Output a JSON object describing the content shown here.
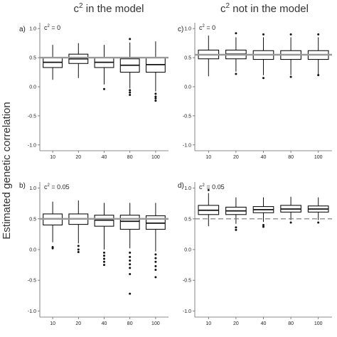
{
  "figure": {
    "column_titles": [
      {
        "base": "c",
        "sup": "2",
        "rest": " in the model"
      },
      {
        "base": "c",
        "sup": "2",
        "rest": " not in the model"
      }
    ],
    "y_axis_label": "Estimated genetic correlation"
  },
  "chart_data": [
    {
      "type": "box",
      "panel": "a)",
      "c2_label": {
        "base": "c",
        "sup": "2",
        "rest": " = 0"
      },
      "categories": [
        "10",
        "20",
        "40",
        "80",
        "100"
      ],
      "ylim": [
        -1.1,
        1.1
      ],
      "yticks": [
        "1.0",
        "0.5",
        "0.0",
        "-0.5",
        "-1.0"
      ],
      "yticks_values": [
        1.0,
        0.5,
        0.0,
        -0.5,
        -1.0
      ],
      "reference_line": {
        "value": 0.5,
        "style": "solid-gray"
      },
      "boxes": [
        {
          "min": 0.12,
          "q1": 0.33,
          "median": 0.42,
          "q3": 0.5,
          "max": 0.72,
          "outliers": []
        },
        {
          "min": 0.15,
          "q1": 0.4,
          "median": 0.48,
          "q3": 0.56,
          "max": 0.75,
          "outliers": []
        },
        {
          "min": 0.04,
          "q1": 0.33,
          "median": 0.42,
          "q3": 0.5,
          "max": 0.72,
          "outliers": [
            -0.04
          ]
        },
        {
          "min": -0.03,
          "q1": 0.25,
          "median": 0.37,
          "q3": 0.48,
          "max": 0.76,
          "outliers": [
            -0.06,
            -0.1,
            -0.14,
            0.82
          ]
        },
        {
          "min": -0.08,
          "q1": 0.25,
          "median": 0.38,
          "q3": 0.5,
          "max": 0.78,
          "outliers": [
            -0.12,
            -0.17,
            -0.2,
            -0.24
          ]
        }
      ]
    },
    {
      "type": "box",
      "panel": "c)",
      "c2_label": {
        "base": "c",
        "sup": "2",
        "rest": " = 0"
      },
      "categories": [
        "10",
        "20",
        "40",
        "80",
        "100"
      ],
      "ylim": [
        -1.1,
        1.1
      ],
      "yticks": [
        "1.0",
        "0.5",
        "0.0",
        "-0.5",
        "-1.0"
      ],
      "yticks_values": [
        1.0,
        0.5,
        0.0,
        -0.5,
        -1.0
      ],
      "reference_line": {
        "value": 0.55,
        "style": "solid-gray"
      },
      "boxes": [
        {
          "min": 0.18,
          "q1": 0.48,
          "median": 0.55,
          "q3": 0.63,
          "max": 0.88,
          "outliers": []
        },
        {
          "min": 0.26,
          "q1": 0.48,
          "median": 0.56,
          "q3": 0.63,
          "max": 0.85,
          "outliers": [
            0.22,
            0.92
          ]
        },
        {
          "min": 0.2,
          "q1": 0.47,
          "median": 0.55,
          "q3": 0.62,
          "max": 0.85,
          "outliers": [
            0.15,
            0.9
          ]
        },
        {
          "min": 0.2,
          "q1": 0.47,
          "median": 0.55,
          "q3": 0.62,
          "max": 0.85,
          "outliers": [
            0.17,
            0.9
          ]
        },
        {
          "min": 0.2,
          "q1": 0.47,
          "median": 0.55,
          "q3": 0.62,
          "max": 0.85,
          "outliers": [
            0.2,
            0.9
          ]
        }
      ]
    },
    {
      "type": "box",
      "panel": "b)",
      "c2_label": {
        "base": "c",
        "sup": "2",
        "rest": " = 0.05"
      },
      "categories": [
        "10",
        "20",
        "40",
        "80",
        "100"
      ],
      "ylim": [
        -1.1,
        1.1
      ],
      "yticks": [
        "1.0",
        "0.5",
        "0.0",
        "-0.5",
        "-1.0"
      ],
      "yticks_values": [
        1.0,
        0.5,
        0.0,
        -0.5,
        -1.0
      ],
      "reference_line": {
        "value": 0.5,
        "style": "solid-gray"
      },
      "boxes": [
        {
          "min": 0.12,
          "q1": 0.4,
          "median": 0.5,
          "q3": 0.58,
          "max": 0.78,
          "outliers": [
            0.04,
            0.02
          ]
        },
        {
          "min": 0.1,
          "q1": 0.41,
          "median": 0.5,
          "q3": 0.58,
          "max": 0.8,
          "outliers": [
            0.06,
            0.0,
            -0.04
          ]
        },
        {
          "min": 0.0,
          "q1": 0.38,
          "median": 0.48,
          "q3": 0.56,
          "max": 0.76,
          "outliers": [
            -0.05,
            -0.1,
            -0.15,
            -0.2,
            -0.25
          ]
        },
        {
          "min": 0.02,
          "q1": 0.33,
          "median": 0.46,
          "q3": 0.56,
          "max": 0.76,
          "outliers": [
            -0.05,
            -0.12,
            -0.18,
            -0.24,
            -0.3,
            -0.4,
            -0.72
          ]
        },
        {
          "min": -0.03,
          "q1": 0.33,
          "median": 0.43,
          "q3": 0.55,
          "max": 0.76,
          "outliers": [
            -0.08,
            -0.14,
            -0.2,
            -0.27,
            -0.33,
            -0.45
          ]
        }
      ]
    },
    {
      "type": "box",
      "panel": "d)",
      "c2_label": {
        "base": "c",
        "sup": "2",
        "rest": " = 0.05"
      },
      "categories": [
        "10",
        "20",
        "40",
        "80",
        "100"
      ],
      "ylim": [
        -1.1,
        1.1
      ],
      "yticks": [
        "1.0",
        "0.5",
        "0.0",
        "-0.5",
        "-1.0"
      ],
      "yticks_values": [
        1.0,
        0.5,
        0.0,
        -0.5,
        -1.0
      ],
      "reference_line": {
        "value": 0.5,
        "style": "dashed"
      },
      "boxes": [
        {
          "min": 0.38,
          "q1": 0.57,
          "median": 0.64,
          "q3": 0.72,
          "max": 0.92,
          "outliers": [
            0.97
          ]
        },
        {
          "min": 0.42,
          "q1": 0.57,
          "median": 0.63,
          "q3": 0.69,
          "max": 0.85,
          "outliers": [
            0.36,
            0.32
          ]
        },
        {
          "min": 0.45,
          "q1": 0.6,
          "median": 0.65,
          "q3": 0.7,
          "max": 0.85,
          "outliers": [
            0.4,
            0.37
          ]
        },
        {
          "min": 0.48,
          "q1": 0.61,
          "median": 0.66,
          "q3": 0.72,
          "max": 0.86,
          "outliers": [
            0.44
          ]
        },
        {
          "min": 0.48,
          "q1": 0.61,
          "median": 0.66,
          "q3": 0.71,
          "max": 0.85,
          "outliers": [
            0.44
          ]
        }
      ]
    }
  ]
}
